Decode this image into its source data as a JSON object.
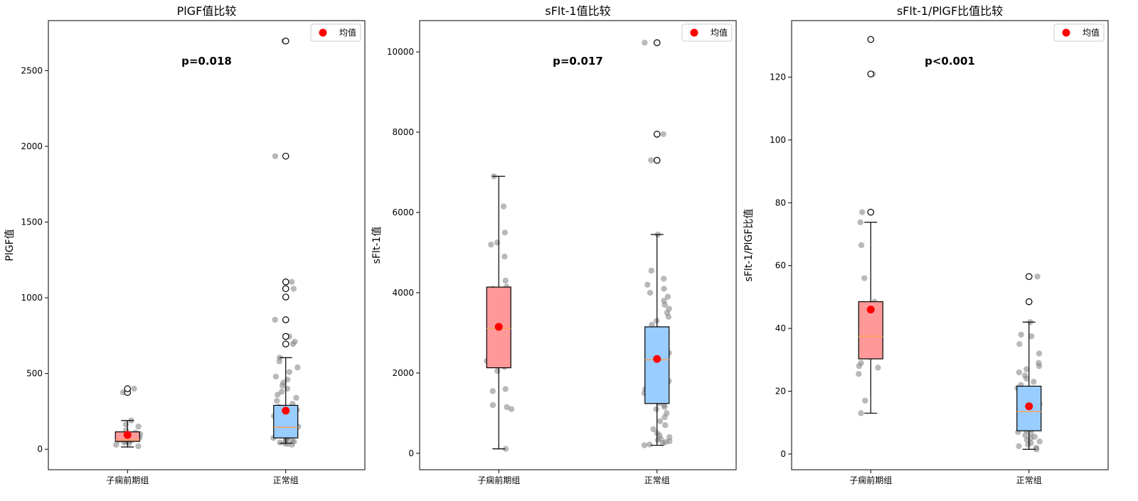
{
  "chart_data": [
    {
      "type": "box",
      "title": "PlGF值比较",
      "xlabel": "",
      "ylabel": "PlGF值",
      "ylim": [
        -135,
        2830
      ],
      "yticks": [
        0,
        500,
        1000,
        1500,
        2000,
        2500
      ],
      "categories": [
        "子痫前期组",
        "正常组"
      ],
      "annotation": "p=0.018",
      "legend": {
        "label": "均值",
        "placement": "top-right"
      },
      "boxes": [
        {
          "group": "子痫前期组",
          "q1": 52,
          "median": 62,
          "q3": 115,
          "whisker_low": 15,
          "whisker_high": 190,
          "mean": 95,
          "outliers": [
            375,
            400
          ]
        },
        {
          "group": "正常组",
          "q1": 75,
          "median": 145,
          "q3": 290,
          "whisker_low": 40,
          "whisker_high": 605,
          "mean": 255,
          "outliers": [
            695,
            745,
            855,
            1005,
            1060,
            1105,
            1935,
            2695
          ]
        }
      ],
      "points": [
        {
          "group": "子痫前期组",
          "values": [
            20,
            30,
            40,
            45,
            50,
            55,
            60,
            65,
            70,
            75,
            85,
            90,
            100,
            110,
            125,
            150,
            165,
            190,
            375,
            400
          ]
        },
        {
          "group": "正常组",
          "values": [
            30,
            35,
            40,
            45,
            50,
            55,
            60,
            65,
            70,
            75,
            80,
            90,
            100,
            110,
            120,
            130,
            140,
            150,
            160,
            180,
            200,
            220,
            240,
            260,
            280,
            300,
            320,
            340,
            360,
            380,
            400,
            420,
            440,
            460,
            480,
            510,
            540,
            580,
            605,
            695,
            710,
            745,
            855,
            1005,
            1060,
            1105,
            1935,
            2695
          ]
        }
      ],
      "colors": {
        "group1_box": "#ff9999",
        "group2_box": "#99ccff",
        "median": "#f5a25d",
        "mean": "#ff0000",
        "points": "#808080"
      }
    },
    {
      "type": "box",
      "title": "sFlt-1值比较",
      "xlabel": "",
      "ylabel": "sFlt-1值",
      "ylim": [
        -410,
        10780
      ],
      "yticks": [
        0,
        2000,
        4000,
        6000,
        8000,
        10000
      ],
      "categories": [
        "子痫前期组",
        "正常组"
      ],
      "annotation": "p=0.017",
      "legend": {
        "label": "均值",
        "placement": "top-right"
      },
      "boxes": [
        {
          "group": "子痫前期组",
          "q1": 2130,
          "median": 3110,
          "q3": 4140,
          "whisker_low": 110,
          "whisker_high": 6900,
          "mean": 3150,
          "outliers": []
        },
        {
          "group": "正常组",
          "q1": 1240,
          "median": 2330,
          "q3": 3150,
          "whisker_low": 200,
          "whisker_high": 5450,
          "mean": 2350,
          "outliers": [
            7300,
            7950,
            10230
          ]
        }
      ],
      "points": [
        {
          "group": "子痫前期组",
          "values": [
            110,
            1100,
            1150,
            1200,
            1550,
            1600,
            2050,
            2150,
            2300,
            2900,
            3100,
            3300,
            3800,
            4100,
            4150,
            4300,
            4900,
            5200,
            5250,
            5500,
            6150,
            6900
          ]
        },
        {
          "group": "正常组",
          "values": [
            200,
            220,
            250,
            280,
            300,
            330,
            360,
            400,
            450,
            500,
            600,
            700,
            800,
            900,
            1000,
            1100,
            1150,
            1200,
            1250,
            1300,
            1400,
            1500,
            1600,
            1700,
            1800,
            1900,
            2000,
            2100,
            2200,
            2300,
            2400,
            2500,
            2600,
            2700,
            2800,
            2900,
            3000,
            3100,
            3200,
            3300,
            3400,
            3500,
            3600,
            3700,
            3800,
            3900,
            4000,
            4100,
            4200,
            4350,
            4550,
            5450,
            7300,
            7950,
            10230
          ]
        }
      ],
      "colors": {
        "group1_box": "#ff9999",
        "group2_box": "#99ccff",
        "median": "#f5a25d",
        "mean": "#ff0000",
        "points": "#808080"
      }
    },
    {
      "type": "box",
      "title": "sFlt-1/PlGF比值比较",
      "xlabel": "",
      "ylabel": "sFlt-1/PlGF比值",
      "ylim": [
        -5,
        138
      ],
      "yticks": [
        0,
        20,
        40,
        60,
        80,
        100,
        120
      ],
      "categories": [
        "子痫前期组",
        "正常组"
      ],
      "annotation": "p<0.001",
      "legend": {
        "label": "均值",
        "placement": "top-right"
      },
      "boxes": [
        {
          "group": "子痫前期组",
          "q1": 30.3,
          "median": 37.5,
          "q3": 48.5,
          "whisker_low": 13,
          "whisker_high": 73.8,
          "mean": 46,
          "outliers": [
            77,
            121,
            132
          ]
        },
        {
          "group": "正常组",
          "q1": 7.4,
          "median": 13.5,
          "q3": 21.6,
          "whisker_low": 1.5,
          "whisker_high": 42,
          "mean": 15.2,
          "outliers": [
            48.5,
            56.5
          ]
        }
      ],
      "points": [
        {
          "group": "子痫前期组",
          "values": [
            13,
            17,
            25.5,
            27.5,
            28,
            29,
            31,
            32,
            34,
            36,
            38,
            40,
            43,
            45,
            48.5,
            56,
            66.5,
            73.8,
            77,
            121,
            132
          ]
        },
        {
          "group": "正常组",
          "values": [
            1.5,
            2,
            2.5,
            3,
            3.5,
            4,
            4.5,
            5,
            5.5,
            6,
            6.5,
            7,
            7.5,
            8,
            8.5,
            9,
            9.5,
            10,
            10.5,
            11,
            11.5,
            12,
            12.5,
            13,
            13.5,
            14,
            14.5,
            15,
            15.5,
            16,
            16.5,
            17,
            18,
            19,
            20,
            21,
            22,
            23,
            24,
            25,
            26,
            27,
            28,
            29,
            32,
            35,
            37.5,
            38,
            42,
            48.5,
            56.5
          ]
        }
      ],
      "colors": {
        "group1_box": "#ff9999",
        "group2_box": "#99ccff",
        "median": "#f5a25d",
        "mean": "#ff0000",
        "points": "#808080"
      }
    }
  ]
}
